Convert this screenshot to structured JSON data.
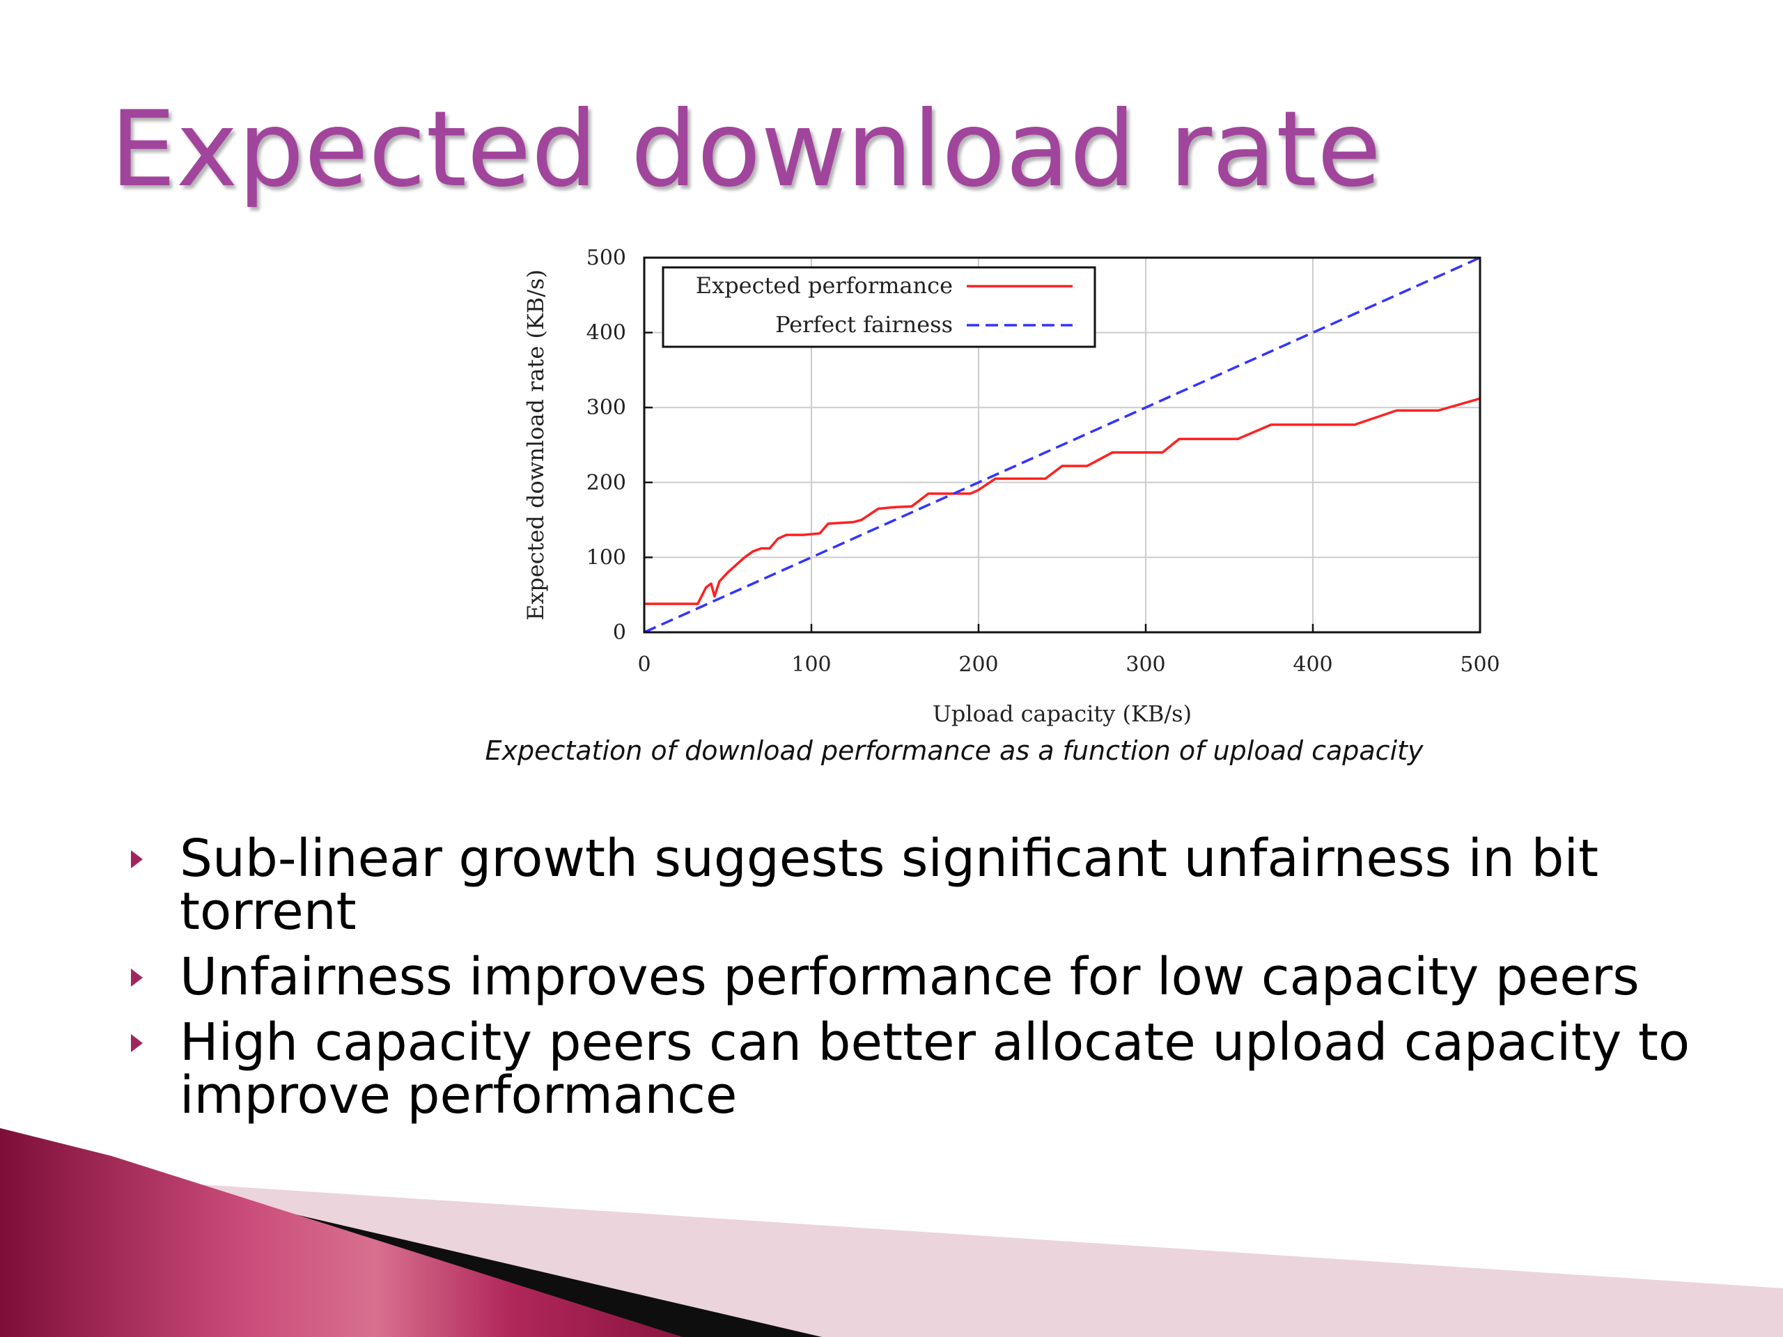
{
  "slide": {
    "title": "Expected download rate",
    "caption": "Expectation of download performance as a function of upload capacity",
    "bullets": [
      "Sub-linear growth suggests significant unfairness in bit torrent",
      "Unfairness improves performance for low capacity peers",
      "High capacity peers can better allocate upload capacity to improve performance"
    ]
  },
  "colors": {
    "title": "#a1459c",
    "expected": "#ff2020",
    "fairness": "#3333ff",
    "accent": "#a0255f",
    "grid": "#cccccc"
  },
  "chart_data": {
    "type": "line",
    "title": "",
    "xlabel": "Upload capacity (KB/s)",
    "ylabel": "Expected download rate (KB/s)",
    "xlim": [
      0,
      500
    ],
    "ylim": [
      0,
      500
    ],
    "xticks": [
      0,
      100,
      200,
      300,
      400,
      500
    ],
    "yticks": [
      0,
      100,
      200,
      300,
      400,
      500
    ],
    "grid": true,
    "legend_position": "top-left",
    "series": [
      {
        "name": "Expected performance",
        "style": "solid",
        "color": "#ff2020",
        "points": [
          [
            0,
            38
          ],
          [
            32,
            38
          ],
          [
            37,
            60
          ],
          [
            40,
            65
          ],
          [
            42,
            48
          ],
          [
            45,
            68
          ],
          [
            50,
            80
          ],
          [
            55,
            90
          ],
          [
            60,
            100
          ],
          [
            65,
            108
          ],
          [
            70,
            112
          ],
          [
            75,
            112
          ],
          [
            80,
            125
          ],
          [
            85,
            130
          ],
          [
            95,
            130
          ],
          [
            105,
            132
          ],
          [
            110,
            145
          ],
          [
            125,
            147
          ],
          [
            130,
            150
          ],
          [
            140,
            165
          ],
          [
            150,
            167
          ],
          [
            160,
            168
          ],
          [
            170,
            185
          ],
          [
            195,
            185
          ],
          [
            200,
            190
          ],
          [
            210,
            205
          ],
          [
            240,
            205
          ],
          [
            250,
            222
          ],
          [
            265,
            222
          ],
          [
            280,
            240
          ],
          [
            310,
            240
          ],
          [
            320,
            258
          ],
          [
            355,
            258
          ],
          [
            375,
            277
          ],
          [
            425,
            277
          ],
          [
            450,
            296
          ],
          [
            475,
            296
          ],
          [
            500,
            312
          ]
        ]
      },
      {
        "name": "Perfect fairness",
        "style": "dashed",
        "color": "#3333ff",
        "points": [
          [
            0,
            0
          ],
          [
            500,
            500
          ]
        ]
      }
    ]
  }
}
